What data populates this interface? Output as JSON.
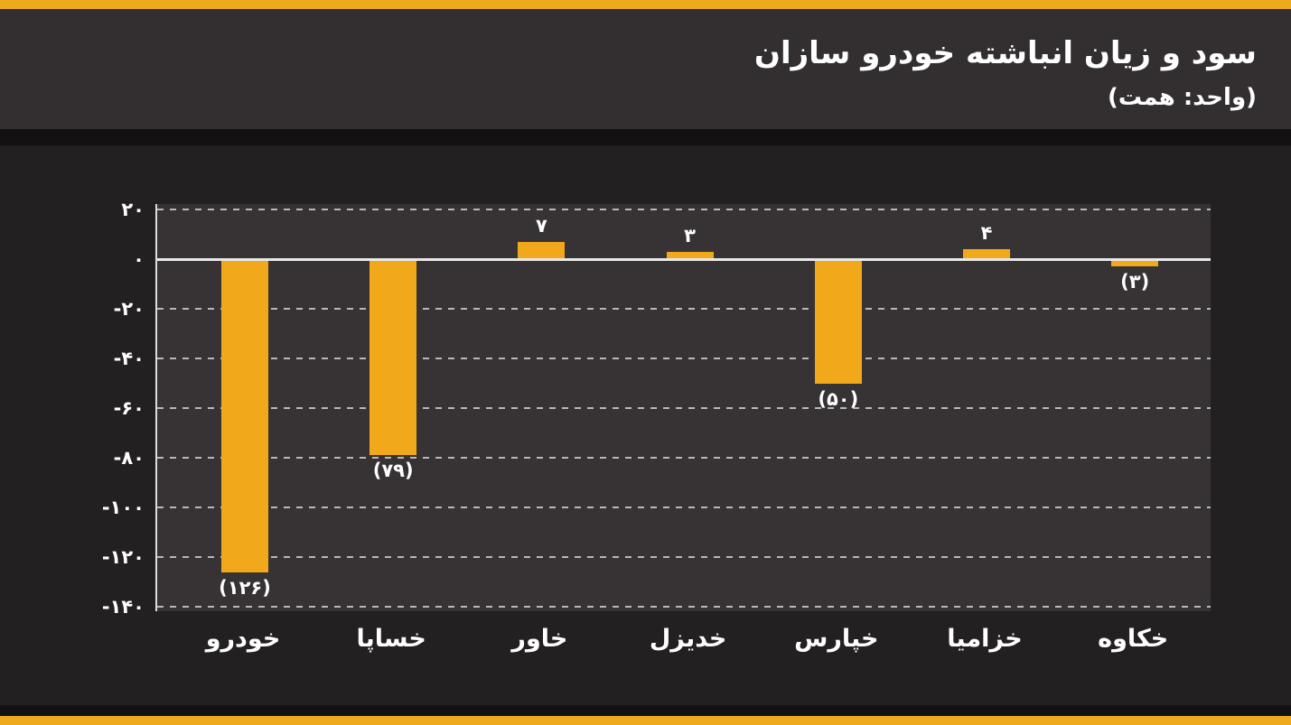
{
  "header": {
    "title": "سود و زیان انباشته خودرو سازان",
    "subtitle": "(واحد: همت)"
  },
  "colors": {
    "accent_strip": "#EFA91D",
    "bar": "#F2A81B",
    "header_bg": "#332F30",
    "body_bg": "#232021",
    "plot_bg": "#373334",
    "divider": "#141112",
    "grid_line": "#CFCFCF",
    "zero_line": "#E8E8E8",
    "text": "#FFFFFF"
  },
  "chart_data": {
    "type": "bar",
    "title": "سود و زیان انباشته خودرو سازان",
    "unit_label": "(واحد: همت)",
    "direction": "rtl",
    "categories": [
      "خودرو",
      "خساپا",
      "خاور",
      "خدیزل",
      "خپارس",
      "خزامیا",
      "خکاوه"
    ],
    "values": [
      -126,
      -79,
      7,
      3,
      -50,
      4,
      -3
    ],
    "value_labels": [
      "(۱۲۶)",
      "(۷۹)",
      "۷",
      "۳",
      "(۵۰)",
      "۴",
      "(۳)"
    ],
    "y_ticks": [
      {
        "value": 20,
        "label": "۲۰"
      },
      {
        "value": 0,
        "label": "۰"
      },
      {
        "value": -20,
        "label": "-۲۰"
      },
      {
        "value": -40,
        "label": "-۴۰"
      },
      {
        "value": -60,
        "label": "-۶۰"
      },
      {
        "value": -80,
        "label": "-۸۰"
      },
      {
        "value": -100,
        "label": "-۱۰۰"
      },
      {
        "value": -120,
        "label": "-۱۲۰"
      },
      {
        "value": -140,
        "label": "-۱۴۰"
      }
    ],
    "ylim": [
      -140,
      20
    ],
    "xlabel": "",
    "ylabel": "",
    "grid": "horizontal-dashed",
    "zero_line": true,
    "legend": false,
    "bar_color": "#F2A81B"
  }
}
